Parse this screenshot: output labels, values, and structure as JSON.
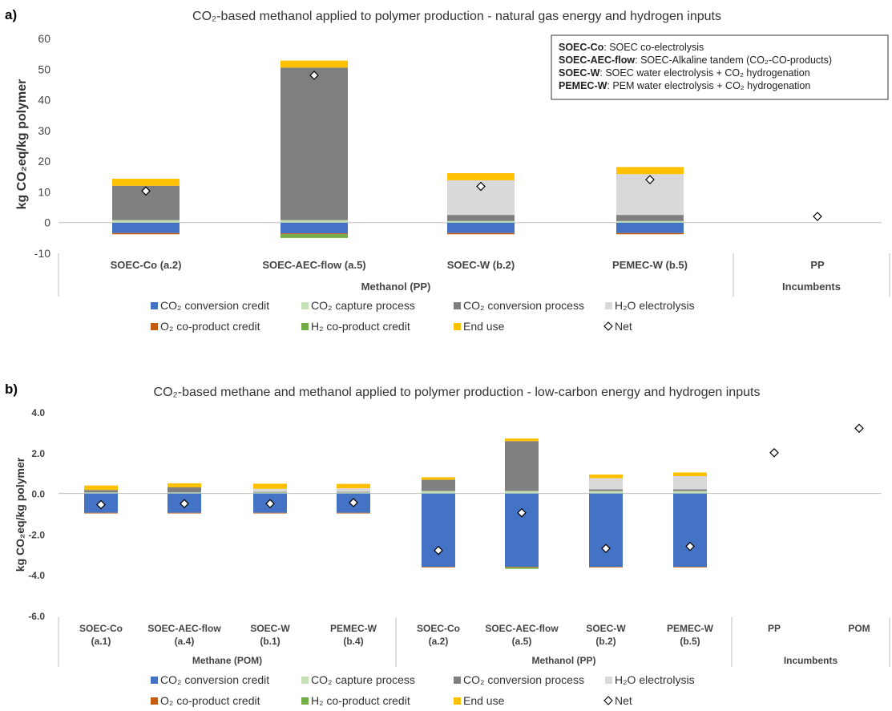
{
  "colors": {
    "co2_conversion_credit": "#4472C4",
    "co2_capture_process": "#C5E0B4",
    "co2_conversion_process": "#7F7F7F",
    "h2o_electrolysis": "#D9D9D9",
    "o2_coproduct_credit": "#C55A11",
    "h2_coproduct_credit": "#70AD47",
    "end_use": "#FFC000"
  },
  "legend": [
    {
      "key": "co2_conversion_credit",
      "label": "CO₂ conversion credit",
      "marker": "square"
    },
    {
      "key": "co2_capture_process",
      "label": "CO₂ capture process",
      "marker": "square"
    },
    {
      "key": "co2_conversion_process",
      "label": "CO₂ conversion process",
      "marker": "square"
    },
    {
      "key": "h2o_electrolysis",
      "label": "H₂O electrolysis",
      "marker": "square"
    },
    {
      "key": "o2_coproduct_credit",
      "label": "O₂ co-product credit",
      "marker": "square"
    },
    {
      "key": "h2_coproduct_credit",
      "label": "H₂ co-product credit",
      "marker": "square"
    },
    {
      "key": "end_use",
      "label": "End use",
      "marker": "square"
    },
    {
      "key": "net",
      "label": "Net",
      "marker": "diamond"
    }
  ],
  "chart_data": [
    {
      "panel_label": "a)",
      "type": "bar",
      "stacked": true,
      "title": "CO₂-based methanol applied to polymer production - natural gas energy and hydrogen inputs",
      "ylabel": "kg CO₂eq/kg polymer",
      "ylim": [
        -10,
        60
      ],
      "yticks": [
        60,
        50,
        40,
        30,
        20,
        10,
        0,
        -10
      ],
      "ytick_labels": [
        "60",
        "50",
        "40",
        "30",
        "20",
        "10",
        "0",
        "-10"
      ],
      "categories": [
        "SOEC-Co (a.2)",
        "SOEC-AEC-flow (a.5)",
        "SOEC-W (b.2)",
        "PEMEC-W  (b.5)",
        "PP"
      ],
      "groups": [
        {
          "label": "Methanol (PP)",
          "count": 4
        },
        {
          "label": "Incumbents",
          "count": 1
        }
      ],
      "series": [
        {
          "key": "co2_conversion_credit",
          "values": [
            -3.4,
            -3.5,
            -3.4,
            -3.4,
            0
          ]
        },
        {
          "key": "co2_capture_process",
          "values": [
            0.8,
            0.8,
            0.5,
            0.5,
            0
          ]
        },
        {
          "key": "co2_conversion_process",
          "values": [
            11.2,
            49.7,
            2.0,
            2.0,
            0
          ]
        },
        {
          "key": "h2o_electrolysis",
          "values": [
            0,
            0,
            11.3,
            13.3,
            0
          ]
        },
        {
          "key": "o2_coproduct_credit",
          "values": [
            -0.4,
            -0.3,
            -0.4,
            -0.4,
            0
          ]
        },
        {
          "key": "h2_coproduct_credit",
          "values": [
            0,
            -1.2,
            0,
            0,
            0
          ]
        },
        {
          "key": "end_use",
          "values": [
            2.3,
            2.3,
            2.3,
            2.3,
            0
          ]
        }
      ],
      "net": [
        10.3,
        48.0,
        11.8,
        14.0,
        2.0
      ],
      "annotation": {
        "lines": [
          {
            "bold": "SOEC-Co",
            "text": ": SOEC co-electrolysis"
          },
          {
            "bold": "SOEC-AEC-flow",
            "text": ": SOEC-Alkaline tandem (CO₂-CO-products)"
          },
          {
            "bold": "SOEC-W",
            "text": ": SOEC water electrolysis + CO₂ hydrogenation"
          },
          {
            "bold": "PEMEC-W",
            "text": ": PEM water electrolysis + CO₂ hydrogenation"
          }
        ]
      }
    },
    {
      "panel_label": "b)",
      "type": "bar",
      "stacked": true,
      "title": "CO₂-based methane and methanol applied to polymer production - low-carbon energy and hydrogen inputs",
      "ylabel": "kg CO₂eq/kg polymer",
      "ylim": [
        -6,
        4
      ],
      "yticks": [
        4,
        2,
        0,
        -2,
        -4,
        -6
      ],
      "ytick_labels": [
        "4.0",
        "2.0",
        "0.0",
        "-2.0",
        "-4.0",
        "-6.0"
      ],
      "categories": [
        [
          "SOEC-Co",
          "(a.1)"
        ],
        [
          "SOEC-AEC-flow",
          "(a.4)"
        ],
        [
          "SOEC-W",
          "(b.1)"
        ],
        [
          "PEMEC-W",
          "(b.4)"
        ],
        [
          "SOEC-Co",
          "(a.2)"
        ],
        [
          "SOEC-AEC-flow",
          "(a.5)"
        ],
        [
          "SOEC-W",
          "(b.2)"
        ],
        [
          "PEMEC-W",
          "(b.5)"
        ],
        [
          "PP",
          ""
        ],
        [
          "POM",
          ""
        ]
      ],
      "groups": [
        {
          "label": "Methane (POM)",
          "count": 4
        },
        {
          "label": "Methanol (PP)",
          "count": 4
        },
        {
          "label": "Incumbents",
          "count": 2
        }
      ],
      "series": [
        {
          "key": "co2_conversion_credit",
          "values": [
            -0.95,
            -0.95,
            -0.95,
            -0.95,
            -3.6,
            -3.6,
            -3.6,
            -3.6,
            0,
            0
          ]
        },
        {
          "key": "co2_capture_process",
          "values": [
            0.05,
            0.05,
            0.05,
            0.05,
            0.12,
            0.12,
            0.12,
            0.12,
            0,
            0
          ]
        },
        {
          "key": "co2_conversion_process",
          "values": [
            0.12,
            0.25,
            0.03,
            0.03,
            0.55,
            2.45,
            0.08,
            0.08,
            0,
            0
          ]
        },
        {
          "key": "h2o_electrolysis",
          "values": [
            0,
            0,
            0.15,
            0.17,
            0,
            0,
            0.55,
            0.65,
            0,
            0
          ]
        },
        {
          "key": "o2_coproduct_credit",
          "values": [
            -0.02,
            -0.02,
            -0.02,
            -0.02,
            -0.03,
            -0.03,
            -0.03,
            -0.03,
            0,
            0
          ]
        },
        {
          "key": "h2_coproduct_credit",
          "values": [
            0,
            0,
            0,
            0,
            0,
            -0.07,
            0,
            0,
            0,
            0
          ]
        },
        {
          "key": "end_use",
          "values": [
            0.22,
            0.2,
            0.25,
            0.22,
            0.13,
            0.13,
            0.18,
            0.18,
            0,
            0
          ]
        }
      ],
      "net": [
        -0.55,
        -0.5,
        -0.5,
        -0.45,
        -2.8,
        -0.95,
        -2.7,
        -2.6,
        2.0,
        3.2
      ]
    }
  ]
}
